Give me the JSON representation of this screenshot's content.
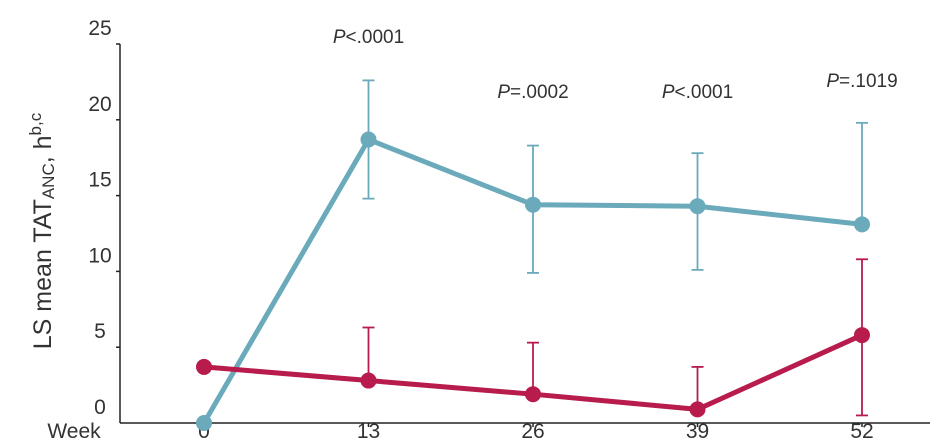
{
  "chart_data": {
    "type": "line",
    "ylabel": {
      "main": "LS mean TAT",
      "subscript": "ANC",
      "unit": ", h",
      "superscript": "b,c"
    },
    "x_axis_prefix": "Week",
    "x": [
      0,
      13,
      26,
      39,
      52
    ],
    "x_tick_labels": [
      "0",
      "13",
      "26",
      "39",
      "52"
    ],
    "y_ticks": [
      0,
      5,
      10,
      15,
      20,
      25
    ],
    "y_tick_labels": [
      "0",
      "5",
      "10",
      "15",
      "20",
      "25"
    ],
    "ylim": [
      0,
      25
    ],
    "series": [
      {
        "color": "#6aaabb",
        "values": [
          0,
          18.7,
          14.4,
          14.3,
          13.1
        ],
        "error_upper": [
          null,
          22.6,
          18.3,
          17.8,
          19.8
        ],
        "error_lower": [
          null,
          14.8,
          9.9,
          10.1,
          null
        ]
      },
      {
        "color": "#b71c4c",
        "values": [
          3.7,
          2.8,
          1.9,
          0.9,
          5.8
        ],
        "error_upper": [
          null,
          6.3,
          5.3,
          3.7,
          10.8
        ],
        "error_lower": [
          null,
          null,
          null,
          null,
          0.5
        ]
      }
    ],
    "p_values": [
      {
        "x": 13,
        "prefix": "P",
        "text": "<.0001"
      },
      {
        "x": 26,
        "prefix": "P",
        "text": "=.0002"
      },
      {
        "x": 39,
        "prefix": "P",
        "text": "<.0001"
      },
      {
        "x": 52,
        "prefix": "P",
        "text": "=.1019"
      }
    ],
    "grid": false,
    "legend": "none"
  }
}
